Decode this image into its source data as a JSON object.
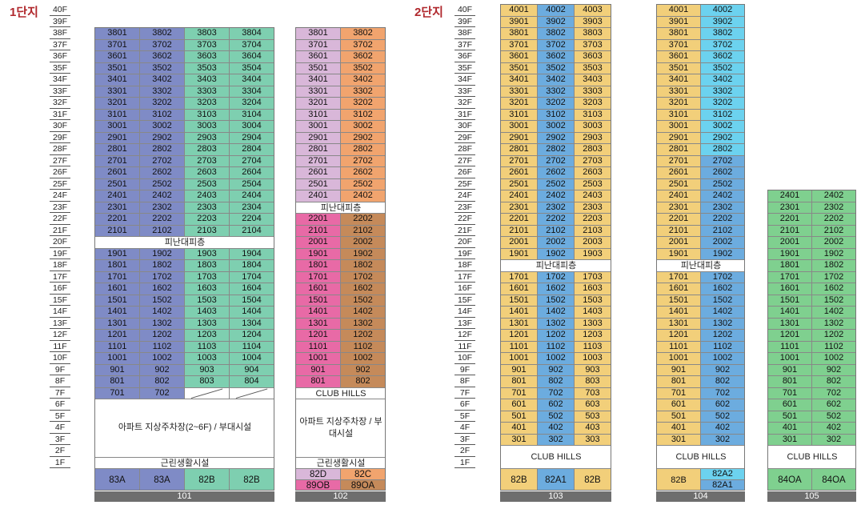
{
  "complexes": [
    "1단지",
    "2단지"
  ],
  "floors": [
    "40F",
    "39F",
    "38F",
    "37F",
    "36F",
    "35F",
    "34F",
    "33F",
    "32F",
    "31F",
    "30F",
    "29F",
    "28F",
    "27F",
    "26F",
    "25F",
    "24F",
    "23F",
    "22F",
    "21F",
    "20F",
    "19F",
    "18F",
    "17F",
    "16F",
    "15F",
    "14F",
    "13F",
    "12F",
    "11F",
    "10F",
    "9F",
    "8F",
    "7F",
    "6F",
    "5F",
    "4F",
    "3F",
    "2F",
    "1F"
  ],
  "labels": {
    "refuge": "피난대피층",
    "club": "CLUB HILLS",
    "parking101": "아파트 지상주차장(2~6F) / 부대시설",
    "parking102": "아파트 지상주차장 / 부대시설",
    "retail": "근린생활시설"
  },
  "colors": {
    "blue": "#7f8bc6",
    "teal": "#7ecfb0",
    "lilac": "#d9b7d9",
    "orange": "#f1a46e",
    "pink": "#e86aa6",
    "brown": "#c58a5a",
    "yellow": "#f2cf7a",
    "sky": "#6cacdf",
    "cyan": "#6cd2ef",
    "green": "#7fd08f"
  },
  "buildings": [
    {
      "name": "101",
      "top": 38,
      "columns": [
        {
          "color": "blue",
          "units": [
            "01",
            "01",
            "01",
            "01"
          ]
        },
        {
          "color": "blue",
          "units": [
            "02"
          ]
        },
        {
          "color": "teal"
        },
        {
          "color": "teal"
        }
      ],
      "types": [
        "83A",
        "83A",
        "82B",
        "82B"
      ]
    },
    {
      "name": "102",
      "types": [
        "82D",
        "82C"
      ],
      "types2": [
        "89OB",
        "89OA"
      ]
    },
    {
      "name": "103",
      "types": [
        "82B",
        "82A1",
        "82B"
      ]
    },
    {
      "name": "104",
      "types": [
        "82B",
        "82A2",
        "82A1"
      ]
    },
    {
      "name": "105",
      "types": [
        "84OA",
        "84OA"
      ]
    }
  ]
}
